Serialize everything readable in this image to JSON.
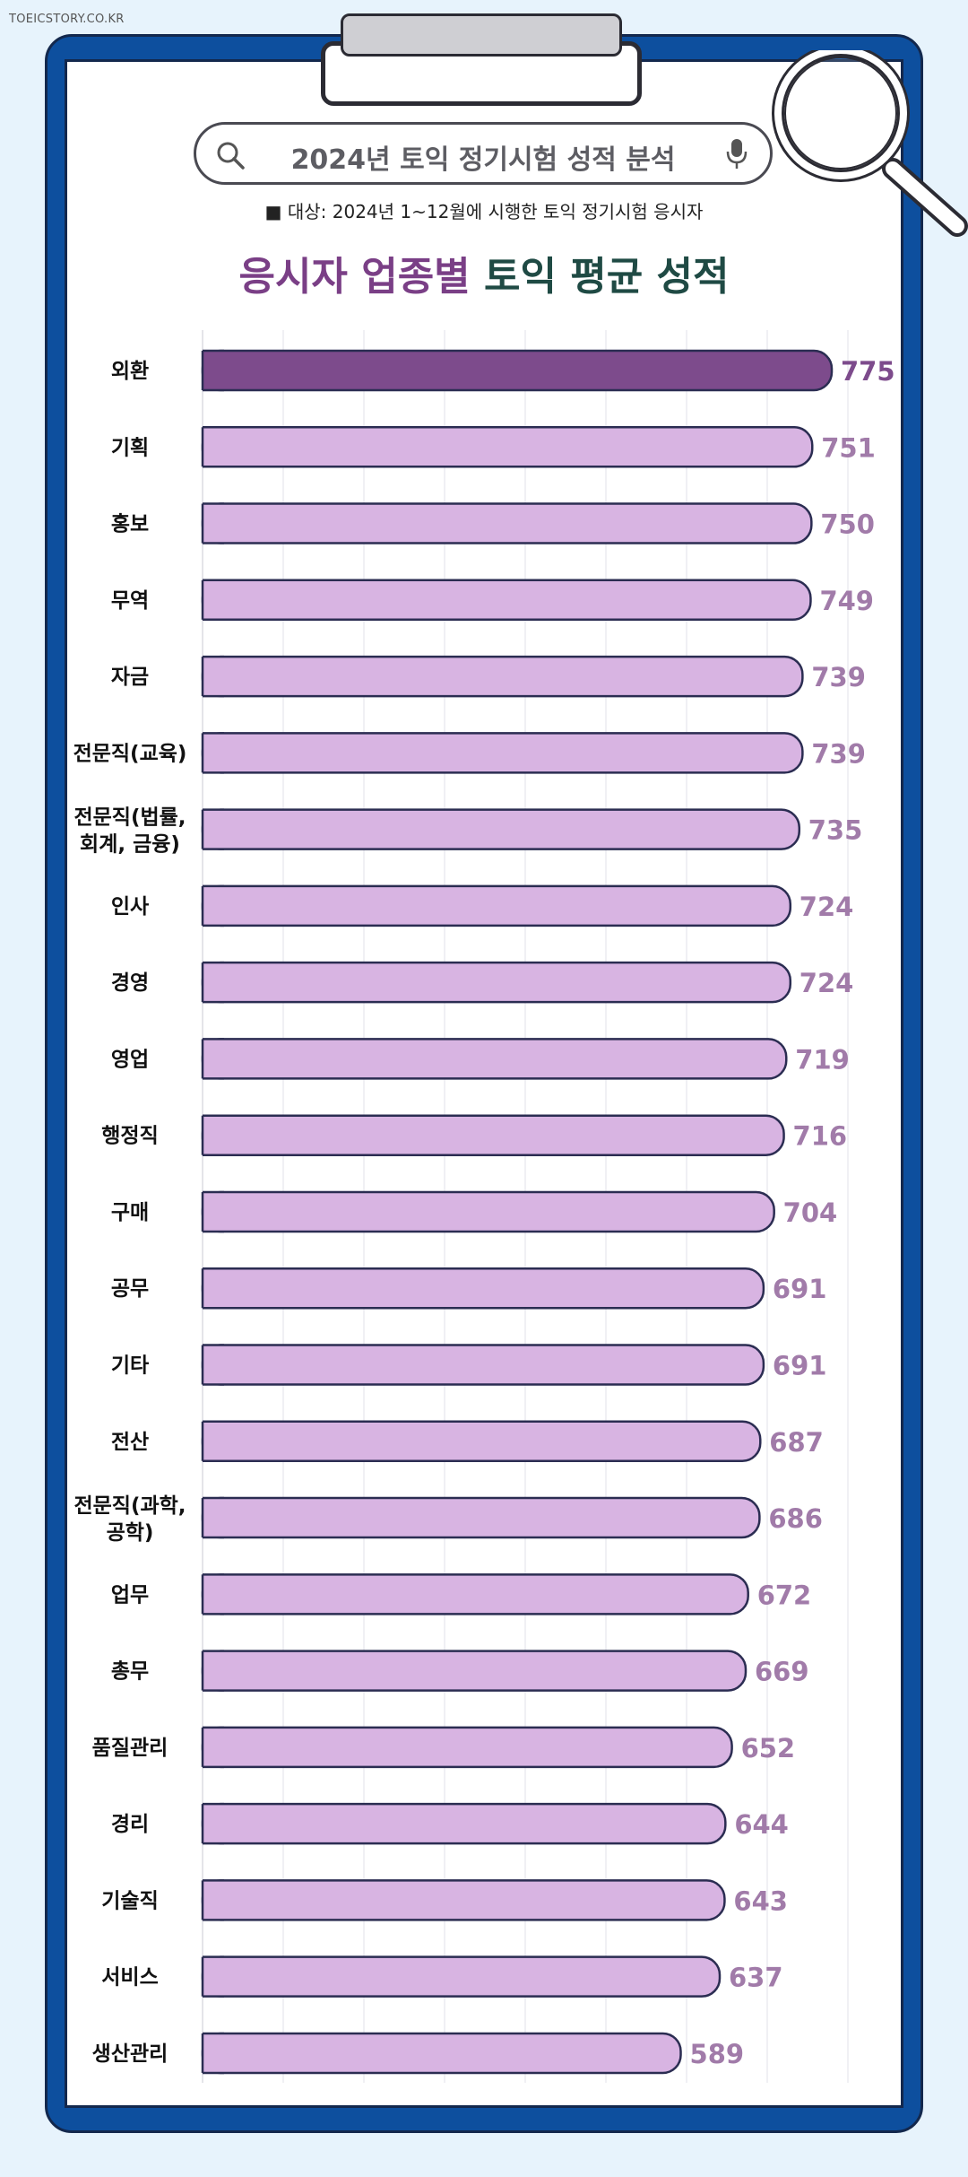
{
  "source": "TOEICSTORY.CO.KR",
  "header": {
    "search_text": "2024년 토익 정기시험 성적 분석",
    "subtitle": "■ 대상: 2024년 1~12월에 시행한 토익 정기시험 응시자",
    "title_part1": "응시자 업종별",
    "title_part2": "토익 평균 성적"
  },
  "colors": {
    "highlight_bar": "#7d4b8c",
    "bar": "#d8b4e2",
    "bar_stroke": "#2b2d52",
    "highlight_value": "#7d4b8c",
    "value": "#a17ba9",
    "board": "#0d4f9e",
    "background": "#e7f3fc"
  },
  "chart_data": {
    "type": "bar",
    "orientation": "horizontal",
    "categories": [
      "외환",
      "기획",
      "홍보",
      "무역",
      "자금",
      "전문직(교육)",
      "전문직(법률, 회계, 금융)",
      "인사",
      "경영",
      "영업",
      "행정직",
      "구매",
      "공무",
      "기타",
      "전산",
      "전문직(과학, 공학)",
      "업무",
      "총무",
      "품질관리",
      "경리",
      "기술직",
      "서비스",
      "생산관리"
    ],
    "category_lines": [
      [
        "외환"
      ],
      [
        "기획"
      ],
      [
        "홍보"
      ],
      [
        "무역"
      ],
      [
        "자금"
      ],
      [
        "전문직(교육)"
      ],
      [
        "전문직(법률,",
        "회계, 금융)"
      ],
      [
        "인사"
      ],
      [
        "경영"
      ],
      [
        "영업"
      ],
      [
        "행정직"
      ],
      [
        "구매"
      ],
      [
        "공무"
      ],
      [
        "기타"
      ],
      [
        "전산"
      ],
      [
        "전문직(과학,",
        "공학)"
      ],
      [
        "업무"
      ],
      [
        "총무"
      ],
      [
        "품질관리"
      ],
      [
        "경리"
      ],
      [
        "기술직"
      ],
      [
        "서비스"
      ],
      [
        "생산관리"
      ]
    ],
    "values": [
      775,
      751,
      750,
      749,
      739,
      739,
      735,
      724,
      724,
      719,
      716,
      704,
      691,
      691,
      687,
      686,
      672,
      669,
      652,
      644,
      643,
      637,
      589
    ],
    "highlight_index": 0,
    "xlim": [
      0,
      800
    ],
    "grid": true,
    "title": "응시자 업종별 토익 평균 성적"
  }
}
